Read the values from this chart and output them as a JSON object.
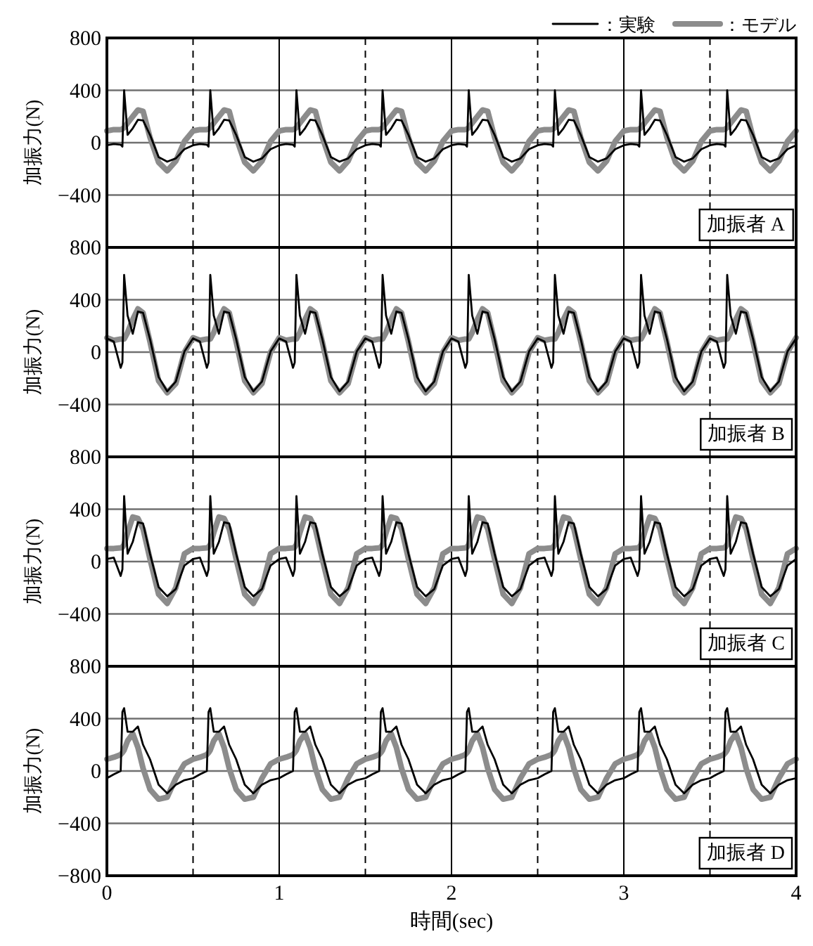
{
  "chart_data": [
    {
      "type": "line",
      "ylabel": "加振力(N)",
      "annotations": [
        "加振者 A"
      ],
      "legend": "top right",
      "grid": true,
      "tick_labels": "y",
      "line_style": "solid",
      "xlim": [
        0,
        4
      ],
      "xticks": [
        0,
        1,
        2,
        3,
        4
      ],
      "ylim": [
        -800,
        800
      ],
      "yticks": [
        -400,
        0,
        400,
        800
      ],
      "ref_lines": [
        {
          "axis": "x",
          "value": 0.5,
          "line_style": "dashed"
        },
        {
          "axis": "x",
          "value": 1.5,
          "line_style": "dashed"
        },
        {
          "axis": "x",
          "value": 2.5,
          "line_style": "dashed"
        },
        {
          "axis": "x",
          "value": 3.5,
          "line_style": "dashed"
        }
      ],
      "x": [
        0,
        0.04,
        0.08,
        0.09,
        0.1,
        0.12,
        0.15,
        0.18,
        0.21,
        0.25,
        0.3,
        0.35,
        0.4,
        0.45,
        0.5,
        0.54,
        0.58,
        0.59,
        0.6,
        0.62,
        0.65,
        0.68,
        0.71,
        0.75,
        0.8,
        0.85,
        0.9,
        0.95,
        1,
        1.04,
        1.08,
        1.09,
        1.1,
        1.12,
        1.15,
        1.18,
        1.21,
        1.25,
        1.3,
        1.35,
        1.4,
        1.45,
        1.5,
        1.54,
        1.58,
        1.59,
        1.6,
        1.62,
        1.65,
        1.68,
        1.71,
        1.75,
        1.8,
        1.85,
        1.9,
        1.95,
        2,
        2.04,
        2.08,
        2.09,
        2.1,
        2.12,
        2.15,
        2.18,
        2.21,
        2.25,
        2.3,
        2.35,
        2.4,
        2.45,
        2.5,
        2.54,
        2.58,
        2.59,
        2.6,
        2.62,
        2.65,
        2.68,
        2.71,
        2.75,
        2.8,
        2.85,
        2.9,
        2.95,
        3,
        3.04,
        3.08,
        3.09,
        3.1,
        3.12,
        3.15,
        3.18,
        3.21,
        3.25,
        3.3,
        3.35,
        3.4,
        3.45,
        3.5,
        3.54,
        3.58,
        3.59,
        3.6,
        3.62,
        3.65,
        3.68,
        3.71,
        3.75,
        3.8,
        3.85,
        3.9,
        3.95,
        4
      ],
      "series": [
        {
          "name": "：実験",
          "color": "#000000",
          "values": [
            -20,
            -10,
            -15,
            -30,
            400,
            60,
            110,
            175,
            170,
            60,
            -110,
            -145,
            -120,
            -50,
            -20,
            -10,
            -15,
            -30,
            400,
            60,
            110,
            175,
            170,
            60,
            -110,
            -145,
            -120,
            -50,
            -20,
            -10,
            -15,
            -30,
            400,
            60,
            110,
            175,
            170,
            60,
            -110,
            -145,
            -120,
            -50,
            -20,
            -10,
            -15,
            -30,
            400,
            60,
            110,
            175,
            170,
            60,
            -110,
            -145,
            -120,
            -50,
            -20,
            -10,
            -15,
            -30,
            400,
            60,
            110,
            175,
            170,
            60,
            -110,
            -145,
            -120,
            -50,
            -20,
            -10,
            -15,
            -30,
            400,
            60,
            110,
            175,
            170,
            60,
            -110,
            -145,
            -120,
            -50,
            -20,
            -10,
            -15,
            -30,
            400,
            60,
            110,
            175,
            170,
            60,
            -110,
            -145,
            -120,
            -50,
            -20,
            -10,
            -15,
            -30,
            400,
            60,
            110,
            175,
            170,
            60,
            -110,
            -145,
            -120,
            -50,
            -20
          ]
        },
        {
          "name": "：モデル",
          "color": "#8c8c8c",
          "values": [
            90,
            100,
            100,
            105,
            115,
            150,
            200,
            250,
            240,
            40,
            -150,
            -215,
            -140,
            10,
            90,
            100,
            100,
            105,
            115,
            150,
            200,
            250,
            240,
            40,
            -150,
            -215,
            -140,
            10,
            90,
            100,
            100,
            105,
            115,
            150,
            200,
            250,
            240,
            40,
            -150,
            -215,
            -140,
            10,
            90,
            100,
            100,
            105,
            115,
            150,
            200,
            250,
            240,
            40,
            -150,
            -215,
            -140,
            10,
            90,
            100,
            100,
            105,
            115,
            150,
            200,
            250,
            240,
            40,
            -150,
            -215,
            -140,
            10,
            90,
            100,
            100,
            105,
            115,
            150,
            200,
            250,
            240,
            40,
            -150,
            -215,
            -140,
            10,
            90,
            100,
            100,
            105,
            115,
            150,
            200,
            250,
            240,
            40,
            -150,
            -215,
            -140,
            10,
            90,
            100,
            100,
            105,
            115,
            150,
            200,
            250,
            240,
            40,
            -150,
            -215,
            -140,
            10,
            90
          ]
        }
      ]
    },
    {
      "type": "line",
      "ylabel": "加振力(N)",
      "annotations": [
        "加振者 B"
      ],
      "grid": true,
      "tick_labels": "y",
      "line_style": "solid",
      "xlim": [
        0,
        4
      ],
      "xticks": [
        0,
        1,
        2,
        3,
        4
      ],
      "ylim": [
        -800,
        800
      ],
      "yticks": [
        -400,
        0,
        400,
        800
      ],
      "ref_lines": [
        {
          "axis": "x",
          "value": 0.5,
          "line_style": "dashed"
        },
        {
          "axis": "x",
          "value": 1.5,
          "line_style": "dashed"
        },
        {
          "axis": "x",
          "value": 2.5,
          "line_style": "dashed"
        },
        {
          "axis": "x",
          "value": 3.5,
          "line_style": "dashed"
        }
      ],
      "x": [
        0,
        0.04,
        0.08,
        0.09,
        0.1,
        0.12,
        0.15,
        0.18,
        0.21,
        0.25,
        0.3,
        0.35,
        0.4,
        0.45,
        0.5,
        0.54,
        0.58,
        0.59,
        0.6,
        0.62,
        0.65,
        0.68,
        0.71,
        0.75,
        0.8,
        0.85,
        0.9,
        0.95,
        1,
        1.04,
        1.08,
        1.09,
        1.1,
        1.12,
        1.15,
        1.18,
        1.21,
        1.25,
        1.3,
        1.35,
        1.4,
        1.45,
        1.5,
        1.54,
        1.58,
        1.59,
        1.6,
        1.62,
        1.65,
        1.68,
        1.71,
        1.75,
        1.8,
        1.85,
        1.9,
        1.95,
        2,
        2.04,
        2.08,
        2.09,
        2.1,
        2.12,
        2.15,
        2.18,
        2.21,
        2.25,
        2.3,
        2.35,
        2.4,
        2.45,
        2.5,
        2.54,
        2.58,
        2.59,
        2.6,
        2.62,
        2.65,
        2.68,
        2.71,
        2.75,
        2.8,
        2.85,
        2.9,
        2.95,
        3,
        3.04,
        3.08,
        3.09,
        3.1,
        3.12,
        3.15,
        3.18,
        3.21,
        3.25,
        3.3,
        3.35,
        3.4,
        3.45,
        3.5,
        3.54,
        3.58,
        3.59,
        3.6,
        3.62,
        3.65,
        3.68,
        3.71,
        3.75,
        3.8,
        3.85,
        3.9,
        3.95,
        4
      ],
      "series": [
        {
          "color": "#000000",
          "values": [
            105,
            80,
            -120,
            -80,
            590,
            280,
            140,
            310,
            300,
            100,
            -190,
            -300,
            -225,
            5,
            105,
            80,
            -120,
            -80,
            590,
            280,
            140,
            310,
            300,
            100,
            -190,
            -300,
            -225,
            5,
            105,
            80,
            -120,
            -80,
            590,
            280,
            140,
            310,
            300,
            100,
            -190,
            -300,
            -225,
            5,
            105,
            80,
            -120,
            -80,
            590,
            280,
            140,
            310,
            300,
            100,
            -190,
            -300,
            -225,
            5,
            105,
            80,
            -120,
            -80,
            590,
            280,
            140,
            310,
            300,
            100,
            -190,
            -300,
            -225,
            5,
            105,
            80,
            -120,
            -80,
            590,
            280,
            140,
            310,
            300,
            100,
            -190,
            -300,
            -225,
            5,
            105,
            80,
            -120,
            -80,
            590,
            280,
            140,
            310,
            300,
            100,
            -190,
            -300,
            -225,
            5,
            105,
            80,
            -120,
            -80,
            590,
            280,
            140,
            310,
            300,
            100,
            -190,
            -300,
            -225,
            5,
            105
          ]
        },
        {
          "color": "#8c8c8c",
          "values": [
            110,
            90,
            100,
            100,
            100,
            150,
            250,
            330,
            300,
            80,
            -220,
            -310,
            -240,
            0,
            110,
            90,
            100,
            100,
            100,
            150,
            250,
            330,
            300,
            80,
            -220,
            -310,
            -240,
            0,
            110,
            90,
            100,
            100,
            100,
            150,
            250,
            330,
            300,
            80,
            -220,
            -310,
            -240,
            0,
            110,
            90,
            100,
            100,
            100,
            150,
            250,
            330,
            300,
            80,
            -220,
            -310,
            -240,
            0,
            110,
            90,
            100,
            100,
            100,
            150,
            250,
            330,
            300,
            80,
            -220,
            -310,
            -240,
            0,
            110,
            90,
            100,
            100,
            100,
            150,
            250,
            330,
            300,
            80,
            -220,
            -310,
            -240,
            0,
            110,
            90,
            100,
            100,
            100,
            150,
            250,
            330,
            300,
            80,
            -220,
            -310,
            -240,
            0,
            110,
            90,
            100,
            100,
            100,
            150,
            250,
            330,
            300,
            80,
            -220,
            -310,
            -240,
            0,
            110
          ]
        }
      ]
    },
    {
      "type": "line",
      "ylabel": "加振力(N)",
      "annotations": [
        "加振者 C"
      ],
      "grid": true,
      "tick_labels": "y",
      "line_style": "solid",
      "xlim": [
        0,
        4
      ],
      "xticks": [
        0,
        1,
        2,
        3,
        4
      ],
      "ylim": [
        -800,
        800
      ],
      "yticks": [
        -400,
        0,
        400,
        800
      ],
      "ref_lines": [
        {
          "axis": "x",
          "value": 0.5,
          "line_style": "dashed"
        },
        {
          "axis": "x",
          "value": 1.5,
          "line_style": "dashed"
        },
        {
          "axis": "x",
          "value": 2.5,
          "line_style": "dashed"
        },
        {
          "axis": "x",
          "value": 3.5,
          "line_style": "dashed"
        }
      ],
      "x": [
        0,
        0.04,
        0.08,
        0.09,
        0.1,
        0.12,
        0.15,
        0.18,
        0.21,
        0.25,
        0.3,
        0.35,
        0.4,
        0.45,
        0.5,
        0.54,
        0.58,
        0.59,
        0.6,
        0.62,
        0.65,
        0.68,
        0.71,
        0.75,
        0.8,
        0.85,
        0.9,
        0.95,
        1,
        1.04,
        1.08,
        1.09,
        1.1,
        1.12,
        1.15,
        1.18,
        1.21,
        1.25,
        1.3,
        1.35,
        1.4,
        1.45,
        1.5,
        1.54,
        1.58,
        1.59,
        1.6,
        1.62,
        1.65,
        1.68,
        1.71,
        1.75,
        1.8,
        1.85,
        1.9,
        1.95,
        2,
        2.04,
        2.08,
        2.09,
        2.1,
        2.12,
        2.15,
        2.18,
        2.21,
        2.25,
        2.3,
        2.35,
        2.4,
        2.45,
        2.5,
        2.54,
        2.58,
        2.59,
        2.6,
        2.62,
        2.65,
        2.68,
        2.71,
        2.75,
        2.8,
        2.85,
        2.9,
        2.95,
        3,
        3.04,
        3.08,
        3.09,
        3.1,
        3.12,
        3.15,
        3.18,
        3.21,
        3.25,
        3.3,
        3.35,
        3.4,
        3.45,
        3.5,
        3.54,
        3.58,
        3.59,
        3.6,
        3.62,
        3.65,
        3.68,
        3.71,
        3.75,
        3.8,
        3.85,
        3.9,
        3.95,
        4
      ],
      "series": [
        {
          "color": "#000000",
          "values": [
            20,
            30,
            -110,
            -60,
            500,
            60,
            150,
            300,
            290,
            60,
            -195,
            -265,
            -210,
            -30,
            20,
            30,
            -110,
            -60,
            500,
            60,
            150,
            300,
            290,
            60,
            -195,
            -265,
            -210,
            -30,
            20,
            30,
            -110,
            -60,
            500,
            60,
            150,
            300,
            290,
            60,
            -195,
            -265,
            -210,
            -30,
            20,
            30,
            -110,
            -60,
            500,
            60,
            150,
            300,
            290,
            60,
            -195,
            -265,
            -210,
            -30,
            20,
            30,
            -110,
            -60,
            500,
            60,
            150,
            300,
            290,
            60,
            -195,
            -265,
            -210,
            -30,
            20,
            30,
            -110,
            -60,
            500,
            60,
            150,
            300,
            290,
            60,
            -195,
            -265,
            -210,
            -30,
            20,
            30,
            -110,
            -60,
            500,
            60,
            150,
            300,
            290,
            60,
            -195,
            -265,
            -210,
            -30,
            20,
            30,
            -110,
            -60,
            500,
            60,
            150,
            300,
            290,
            60,
            -195,
            -265,
            -210,
            -30,
            20
          ]
        },
        {
          "color": "#8c8c8c",
          "values": [
            100,
            100,
            105,
            110,
            130,
            220,
            340,
            330,
            250,
            20,
            -250,
            -320,
            -200,
            60,
            100,
            100,
            105,
            110,
            130,
            220,
            340,
            330,
            250,
            20,
            -250,
            -320,
            -200,
            60,
            100,
            100,
            105,
            110,
            130,
            220,
            340,
            330,
            250,
            20,
            -250,
            -320,
            -200,
            60,
            100,
            100,
            105,
            110,
            130,
            220,
            340,
            330,
            250,
            20,
            -250,
            -320,
            -200,
            60,
            100,
            100,
            105,
            110,
            130,
            220,
            340,
            330,
            250,
            20,
            -250,
            -320,
            -200,
            60,
            100,
            100,
            105,
            110,
            130,
            220,
            340,
            330,
            250,
            20,
            -250,
            -320,
            -200,
            60,
            100,
            100,
            105,
            110,
            130,
            220,
            340,
            330,
            250,
            20,
            -250,
            -320,
            -200,
            60,
            100,
            100,
            105,
            110,
            130,
            220,
            340,
            330,
            250,
            20,
            -250,
            -320,
            -200,
            60,
            100
          ]
        }
      ]
    },
    {
      "type": "line",
      "ylabel": "加振力(N)",
      "xlabel": "時間(sec)",
      "annotations": [
        "加振者 D"
      ],
      "grid": true,
      "line_style": "solid",
      "xlim": [
        0,
        4
      ],
      "xticks": [
        0,
        1,
        2,
        3,
        4
      ],
      "ylim": [
        -800,
        800
      ],
      "yticks": [
        -800,
        -400,
        0,
        400,
        800
      ],
      "ref_lines": [
        {
          "axis": "x",
          "value": 0.5,
          "line_style": "dashed"
        },
        {
          "axis": "x",
          "value": 1.5,
          "line_style": "dashed"
        },
        {
          "axis": "x",
          "value": 2.5,
          "line_style": "dashed"
        },
        {
          "axis": "x",
          "value": 3.5,
          "line_style": "dashed"
        }
      ],
      "x": [
        0,
        0.04,
        0.08,
        0.09,
        0.1,
        0.12,
        0.15,
        0.18,
        0.21,
        0.25,
        0.3,
        0.35,
        0.4,
        0.45,
        0.5,
        0.54,
        0.58,
        0.59,
        0.6,
        0.62,
        0.65,
        0.68,
        0.71,
        0.75,
        0.8,
        0.85,
        0.9,
        0.95,
        1,
        1.04,
        1.08,
        1.09,
        1.1,
        1.12,
        1.15,
        1.18,
        1.21,
        1.25,
        1.3,
        1.35,
        1.4,
        1.45,
        1.5,
        1.54,
        1.58,
        1.59,
        1.6,
        1.62,
        1.65,
        1.68,
        1.71,
        1.75,
        1.8,
        1.85,
        1.9,
        1.95,
        2,
        2.04,
        2.08,
        2.09,
        2.1,
        2.12,
        2.15,
        2.18,
        2.21,
        2.25,
        2.3,
        2.35,
        2.4,
        2.45,
        2.5,
        2.54,
        2.58,
        2.59,
        2.6,
        2.62,
        2.65,
        2.68,
        2.71,
        2.75,
        2.8,
        2.85,
        2.9,
        2.95,
        3,
        3.04,
        3.08,
        3.09,
        3.1,
        3.12,
        3.15,
        3.18,
        3.21,
        3.25,
        3.3,
        3.35,
        3.4,
        3.45,
        3.5,
        3.54,
        3.58,
        3.59,
        3.6,
        3.62,
        3.65,
        3.68,
        3.71,
        3.75,
        3.8,
        3.85,
        3.9,
        3.95,
        4
      ],
      "series": [
        {
          "color": "#000000",
          "values": [
            -55,
            -25,
            0,
            450,
            480,
            300,
            300,
            340,
            200,
            90,
            -105,
            -170,
            -105,
            -70,
            -55,
            -25,
            0,
            450,
            480,
            300,
            300,
            340,
            200,
            90,
            -105,
            -170,
            -105,
            -70,
            -55,
            -25,
            0,
            450,
            480,
            300,
            300,
            340,
            200,
            90,
            -105,
            -170,
            -105,
            -70,
            -55,
            -25,
            0,
            450,
            480,
            300,
            300,
            340,
            200,
            90,
            -105,
            -170,
            -105,
            -70,
            -55,
            -25,
            0,
            450,
            480,
            300,
            300,
            340,
            200,
            90,
            -105,
            -170,
            -105,
            -70,
            -55,
            -25,
            0,
            450,
            480,
            300,
            300,
            340,
            200,
            90,
            -105,
            -170,
            -105,
            -70,
            -55,
            -25,
            0,
            450,
            480,
            300,
            300,
            340,
            200,
            90,
            -105,
            -170,
            -105,
            -70,
            -55,
            -25,
            0,
            450,
            480,
            300,
            300,
            340,
            200,
            90,
            -105,
            -170,
            -105,
            -70,
            -55
          ]
        },
        {
          "color": "#8c8c8c",
          "values": [
            90,
            105,
            125,
            140,
            160,
            230,
            285,
            180,
            20,
            -140,
            -215,
            -200,
            -55,
            55,
            90,
            105,
            125,
            140,
            160,
            230,
            285,
            180,
            20,
            -140,
            -215,
            -200,
            -55,
            55,
            90,
            105,
            125,
            140,
            160,
            230,
            285,
            180,
            20,
            -140,
            -215,
            -200,
            -55,
            55,
            90,
            105,
            125,
            140,
            160,
            230,
            285,
            180,
            20,
            -140,
            -215,
            -200,
            -55,
            55,
            90,
            105,
            125,
            140,
            160,
            230,
            285,
            180,
            20,
            -140,
            -215,
            -200,
            -55,
            55,
            90,
            105,
            125,
            140,
            160,
            230,
            285,
            180,
            20,
            -140,
            -215,
            -200,
            -55,
            55,
            90,
            105,
            125,
            140,
            160,
            230,
            285,
            180,
            20,
            -140,
            -215,
            -200,
            -55,
            55,
            90,
            105,
            125,
            140,
            160,
            230,
            285,
            180,
            20,
            -140,
            -215,
            -200,
            -55,
            55,
            90
          ]
        }
      ]
    }
  ]
}
